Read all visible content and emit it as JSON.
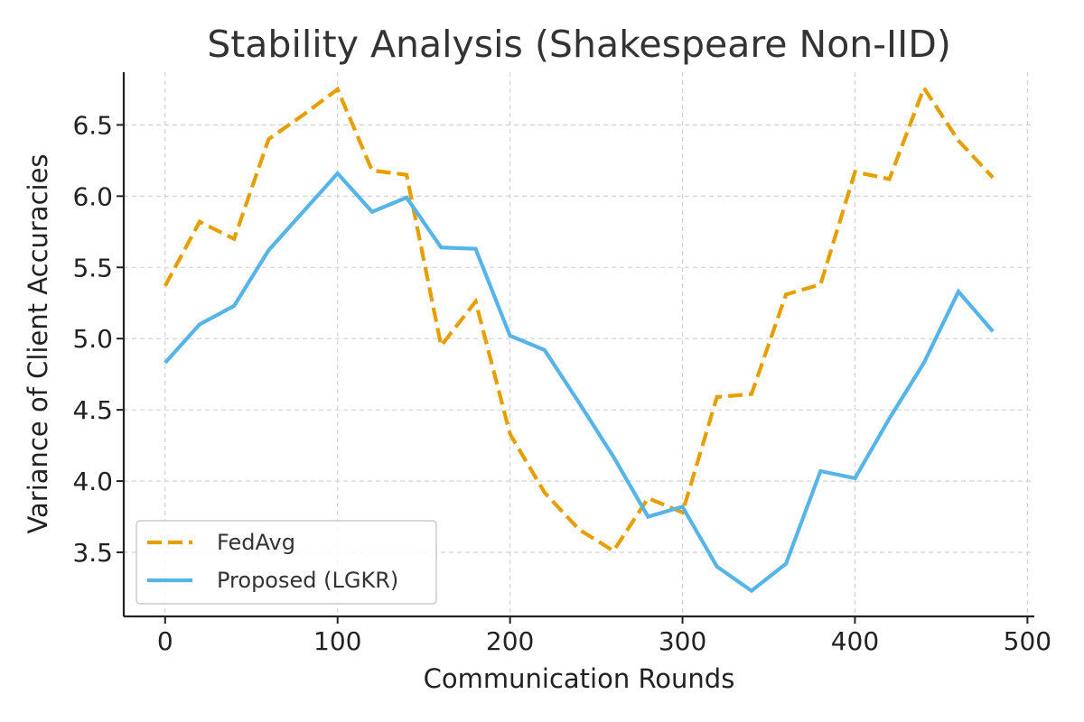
{
  "chart_data": {
    "type": "line",
    "title": "Stability Analysis (Shakespeare Non-IID)",
    "xlabel": "Communication Rounds",
    "ylabel": "Variance of Client Accuracies",
    "xlim": [
      -24,
      504
    ],
    "ylim": [
      3.05,
      6.87
    ],
    "xticks": [
      0,
      100,
      200,
      300,
      400,
      500
    ],
    "yticks": [
      3.5,
      4.0,
      4.5,
      5.0,
      5.5,
      6.0,
      6.5
    ],
    "grid": true,
    "legend_position": "bottom-left",
    "x": [
      0,
      20,
      40,
      60,
      80,
      100,
      120,
      140,
      160,
      180,
      200,
      220,
      240,
      260,
      280,
      300,
      320,
      340,
      360,
      380,
      400,
      420,
      440,
      460,
      480
    ],
    "series": [
      {
        "name": "FedAvg",
        "color": "#E69F00",
        "style": "dashed",
        "values": [
          5.37,
          5.82,
          5.7,
          6.4,
          6.57,
          6.75,
          6.18,
          6.15,
          4.95,
          5.26,
          4.33,
          3.92,
          3.66,
          3.51,
          3.88,
          3.78,
          4.59,
          4.61,
          5.31,
          5.38,
          6.17,
          6.12,
          6.76,
          6.39,
          6.13
        ]
      },
      {
        "name": "Proposed (LGKR)",
        "color": "#56B4E9",
        "style": "solid",
        "values": [
          4.83,
          5.1,
          5.23,
          5.62,
          5.89,
          6.16,
          5.89,
          5.99,
          5.64,
          5.63,
          5.02,
          4.92,
          4.55,
          4.17,
          3.75,
          3.82,
          3.4,
          3.23,
          3.42,
          4.07,
          4.02,
          4.44,
          4.83,
          5.33,
          5.05
        ]
      }
    ]
  }
}
